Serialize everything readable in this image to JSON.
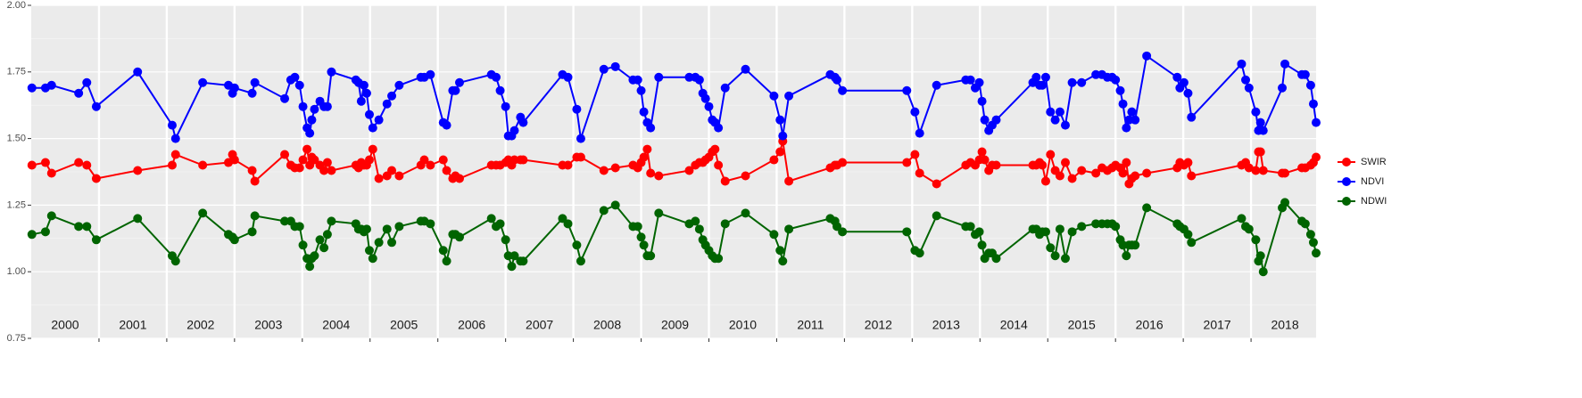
{
  "chart_data": {
    "type": "line",
    "x": [
      2000.01,
      2000.21,
      2000.3,
      2000.7,
      2000.82,
      2000.96,
      2001.57,
      2002.08,
      2002.13,
      2002.53,
      2002.91,
      2002.97,
      2003.0,
      2003.26,
      2003.3,
      2003.74,
      2003.83,
      2003.89,
      2003.96,
      2004.01,
      2004.07,
      2004.11,
      2004.14,
      2004.18,
      2004.26,
      2004.32,
      2004.37,
      2004.43,
      2004.79,
      2004.83,
      2004.87,
      2004.91,
      2004.95,
      2004.99,
      2005.04,
      2005.13,
      2005.25,
      2005.32,
      2005.43,
      2005.75,
      2005.8,
      2005.89,
      2006.08,
      2006.13,
      2006.22,
      2006.26,
      2006.32,
      2006.79,
      2006.86,
      2006.92,
      2007.0,
      2007.04,
      2007.09,
      2007.13,
      2007.22,
      2007.26,
      2007.84,
      2007.92,
      2008.05,
      2008.11,
      2008.45,
      2008.62,
      2008.88,
      2008.95,
      2009.0,
      2009.04,
      2009.09,
      2009.14,
      2009.26,
      2009.71,
      2009.8,
      2009.86,
      2009.91,
      2009.95,
      2010.0,
      2010.05,
      2010.09,
      2010.14,
      2010.24,
      2010.54,
      2010.96,
      2011.05,
      2011.09,
      2011.18,
      2011.79,
      2011.86,
      2011.89,
      2011.97,
      2012.92,
      2013.04,
      2013.11,
      2013.36,
      2013.79,
      2013.86,
      2013.93,
      2013.99,
      2014.03,
      2014.07,
      2014.13,
      2014.18,
      2014.24,
      2014.78,
      2014.83,
      2014.88,
      2014.92,
      2014.97,
      2015.04,
      2015.11,
      2015.18,
      2015.26,
      2015.36,
      2015.5,
      2015.71,
      2015.8,
      2015.88,
      2015.95,
      2016.0,
      2016.07,
      2016.11,
      2016.16,
      2016.2,
      2016.24,
      2016.29,
      2016.46,
      2016.91,
      2016.95,
      2017.01,
      2017.07,
      2017.12,
      2017.86,
      2017.92,
      2017.97,
      2018.07,
      2018.11,
      2018.14,
      2018.18,
      2018.46,
      2018.5,
      2018.75,
      2018.8,
      2018.88,
      2018.92,
      2018.96
    ],
    "series": [
      {
        "name": "SWIR",
        "color": "#ff0000",
        "values": [
          1.4,
          1.41,
          1.37,
          1.41,
          1.4,
          1.35,
          1.38,
          1.4,
          1.44,
          1.4,
          1.41,
          1.44,
          1.42,
          1.38,
          1.34,
          1.44,
          1.4,
          1.39,
          1.39,
          1.42,
          1.46,
          1.4,
          1.43,
          1.42,
          1.4,
          1.38,
          1.41,
          1.38,
          1.4,
          1.39,
          1.41,
          1.4,
          1.4,
          1.42,
          1.46,
          1.35,
          1.36,
          1.38,
          1.36,
          1.4,
          1.42,
          1.4,
          1.42,
          1.38,
          1.35,
          1.36,
          1.35,
          1.4,
          1.4,
          1.4,
          1.41,
          1.42,
          1.4,
          1.42,
          1.42,
          1.42,
          1.4,
          1.4,
          1.43,
          1.43,
          1.38,
          1.39,
          1.4,
          1.39,
          1.41,
          1.43,
          1.46,
          1.37,
          1.36,
          1.38,
          1.4,
          1.41,
          1.41,
          1.42,
          1.43,
          1.45,
          1.46,
          1.4,
          1.34,
          1.36,
          1.42,
          1.45,
          1.49,
          1.34,
          1.39,
          1.4,
          1.4,
          1.41,
          1.41,
          1.44,
          1.37,
          1.33,
          1.4,
          1.41,
          1.4,
          1.42,
          1.45,
          1.42,
          1.38,
          1.4,
          1.4,
          1.4,
          1.4,
          1.41,
          1.4,
          1.34,
          1.44,
          1.38,
          1.36,
          1.41,
          1.35,
          1.38,
          1.37,
          1.39,
          1.38,
          1.39,
          1.4,
          1.39,
          1.37,
          1.41,
          1.33,
          1.35,
          1.36,
          1.37,
          1.39,
          1.41,
          1.4,
          1.41,
          1.36,
          1.4,
          1.41,
          1.39,
          1.38,
          1.45,
          1.45,
          1.38,
          1.37,
          1.37,
          1.39,
          1.39,
          1.4,
          1.41,
          1.43
        ]
      },
      {
        "name": "NDVI",
        "color": "#0000ff",
        "values": [
          1.69,
          1.69,
          1.7,
          1.67,
          1.71,
          1.62,
          1.75,
          1.55,
          1.5,
          1.71,
          1.7,
          1.67,
          1.69,
          1.67,
          1.71,
          1.65,
          1.72,
          1.73,
          1.7,
          1.62,
          1.54,
          1.52,
          1.57,
          1.61,
          1.64,
          1.62,
          1.62,
          1.75,
          1.72,
          1.71,
          1.64,
          1.7,
          1.67,
          1.59,
          1.54,
          1.57,
          1.63,
          1.66,
          1.7,
          1.73,
          1.73,
          1.74,
          1.56,
          1.55,
          1.68,
          1.68,
          1.71,
          1.74,
          1.73,
          1.68,
          1.62,
          1.51,
          1.51,
          1.53,
          1.58,
          1.56,
          1.74,
          1.73,
          1.61,
          1.5,
          1.76,
          1.77,
          1.72,
          1.72,
          1.68,
          1.6,
          1.56,
          1.54,
          1.73,
          1.73,
          1.73,
          1.72,
          1.67,
          1.65,
          1.62,
          1.57,
          1.56,
          1.54,
          1.69,
          1.76,
          1.66,
          1.57,
          1.51,
          1.66,
          1.74,
          1.73,
          1.72,
          1.68,
          1.68,
          1.6,
          1.52,
          1.7,
          1.72,
          1.72,
          1.69,
          1.71,
          1.64,
          1.57,
          1.53,
          1.55,
          1.57,
          1.71,
          1.73,
          1.7,
          1.7,
          1.73,
          1.6,
          1.57,
          1.6,
          1.55,
          1.71,
          1.71,
          1.74,
          1.74,
          1.73,
          1.73,
          1.72,
          1.68,
          1.63,
          1.54,
          1.57,
          1.6,
          1.57,
          1.81,
          1.73,
          1.69,
          1.71,
          1.67,
          1.58,
          1.78,
          1.72,
          1.69,
          1.6,
          1.53,
          1.56,
          1.53,
          1.69,
          1.78,
          1.74,
          1.74,
          1.7,
          1.63,
          1.56
        ]
      },
      {
        "name": "NDWI",
        "color": "#006400",
        "values": [
          1.14,
          1.15,
          1.21,
          1.17,
          1.17,
          1.12,
          1.2,
          1.06,
          1.04,
          1.22,
          1.14,
          1.13,
          1.12,
          1.15,
          1.21,
          1.19,
          1.19,
          1.17,
          1.17,
          1.1,
          1.05,
          1.02,
          1.05,
          1.06,
          1.12,
          1.09,
          1.14,
          1.19,
          1.18,
          1.16,
          1.16,
          1.15,
          1.16,
          1.08,
          1.05,
          1.11,
          1.16,
          1.11,
          1.17,
          1.19,
          1.19,
          1.18,
          1.08,
          1.04,
          1.14,
          1.14,
          1.13,
          1.2,
          1.17,
          1.18,
          1.12,
          1.06,
          1.02,
          1.06,
          1.04,
          1.04,
          1.2,
          1.18,
          1.1,
          1.04,
          1.23,
          1.25,
          1.17,
          1.17,
          1.13,
          1.1,
          1.06,
          1.06,
          1.22,
          1.18,
          1.19,
          1.16,
          1.12,
          1.1,
          1.08,
          1.06,
          1.05,
          1.05,
          1.18,
          1.22,
          1.14,
          1.08,
          1.04,
          1.16,
          1.2,
          1.19,
          1.17,
          1.15,
          1.15,
          1.08,
          1.07,
          1.21,
          1.17,
          1.17,
          1.14,
          1.15,
          1.1,
          1.05,
          1.07,
          1.07,
          1.05,
          1.16,
          1.16,
          1.14,
          1.15,
          1.15,
          1.09,
          1.06,
          1.16,
          1.05,
          1.15,
          1.17,
          1.18,
          1.18,
          1.18,
          1.18,
          1.17,
          1.12,
          1.1,
          1.06,
          1.1,
          1.1,
          1.1,
          1.24,
          1.18,
          1.17,
          1.16,
          1.14,
          1.11,
          1.2,
          1.17,
          1.16,
          1.12,
          1.04,
          1.06,
          1.0,
          1.24,
          1.26,
          1.19,
          1.18,
          1.14,
          1.11,
          1.07
        ]
      }
    ],
    "xlim": [
      2000,
      2018.96
    ],
    "xticks": [
      {
        "value": 2000.5,
        "label": "2000"
      },
      {
        "value": 2001.5,
        "label": "2001"
      },
      {
        "value": 2002.5,
        "label": "2002"
      },
      {
        "value": 2003.5,
        "label": "2003"
      },
      {
        "value": 2004.5,
        "label": "2004"
      },
      {
        "value": 2005.5,
        "label": "2005"
      },
      {
        "value": 2006.5,
        "label": "2006"
      },
      {
        "value": 2007.5,
        "label": "2007"
      },
      {
        "value": 2008.5,
        "label": "2008"
      },
      {
        "value": 2009.5,
        "label": "2009"
      },
      {
        "value": 2010.5,
        "label": "2010"
      },
      {
        "value": 2011.5,
        "label": "2011"
      },
      {
        "value": 2012.5,
        "label": "2012"
      },
      {
        "value": 2013.5,
        "label": "2013"
      },
      {
        "value": 2014.5,
        "label": "2014"
      },
      {
        "value": 2015.5,
        "label": "2015"
      },
      {
        "value": 2016.5,
        "label": "2016"
      },
      {
        "value": 2017.5,
        "label": "2017"
      },
      {
        "value": 2018.5,
        "label": "2018"
      }
    ],
    "ylim": [
      0.75,
      2.0
    ],
    "yticks": [
      {
        "value": 0.75,
        "label": "0.75"
      },
      {
        "value": 1,
        "label": "1.00"
      },
      1.25,
      {
        "value": 1.5,
        "label": "1.50"
      },
      1.75,
      {
        "value": 2,
        "label": "2.00"
      }
    ],
    "grid": true,
    "legend": "right"
  }
}
